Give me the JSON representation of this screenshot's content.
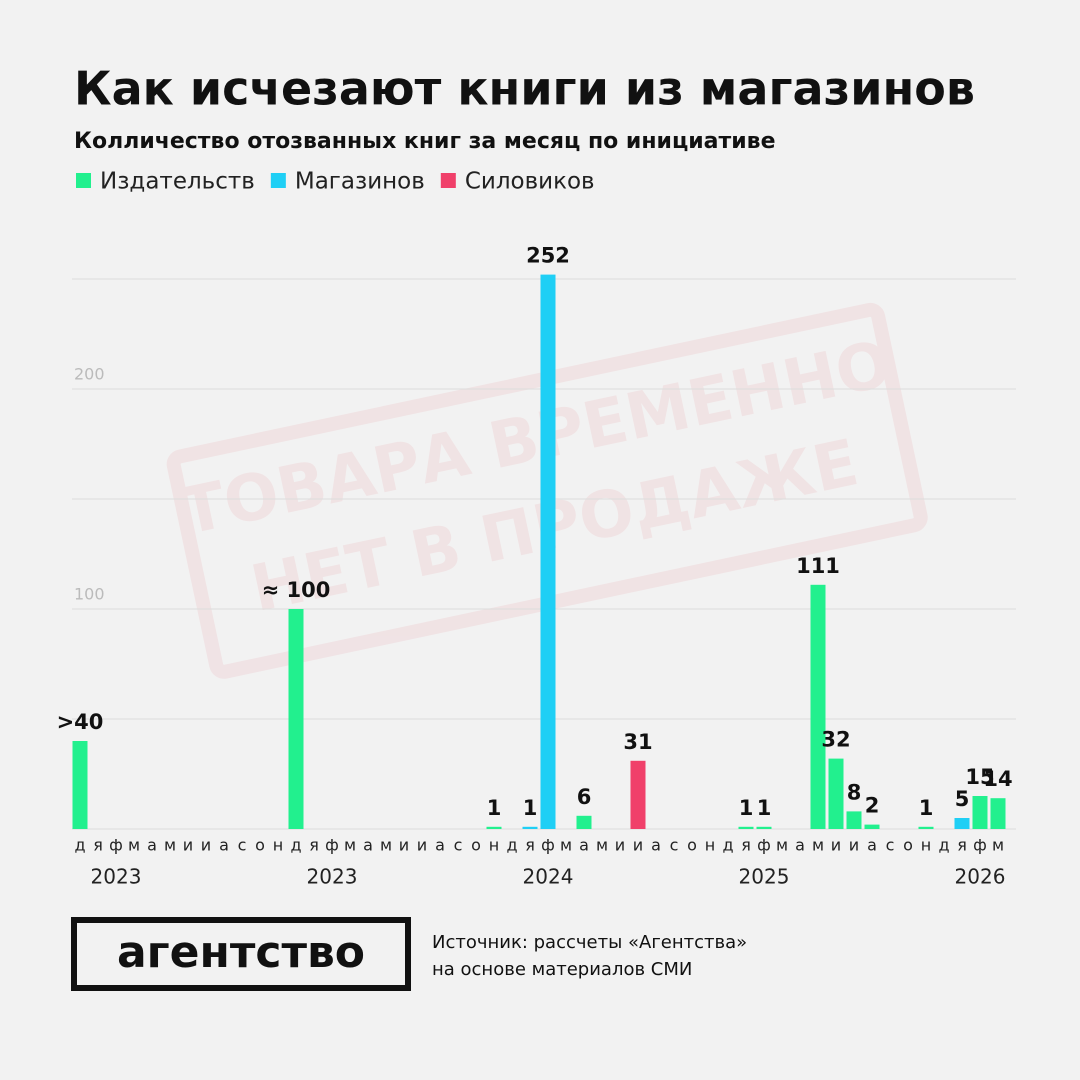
{
  "chart_data": {
    "type": "bar",
    "title": "Как исчезают книги из магазинов",
    "subtitle": "Колличество отозванных книг за месяц по инициативе",
    "categories": [
      "д",
      "я",
      "ф",
      "м",
      "а",
      "м",
      "и",
      "и",
      "а",
      "с",
      "о",
      "н",
      "д",
      "я",
      "ф",
      "м",
      "а",
      "м",
      "и",
      "и",
      "а",
      "с",
      "о",
      "н",
      "д",
      "я",
      "ф",
      "м",
      "а",
      "м",
      "и",
      "и",
      "а",
      "с",
      "о",
      "н",
      "д",
      "я",
      "ф",
      "м",
      "а",
      "м",
      "и",
      "и",
      "а",
      "с",
      "о",
      "н",
      "д",
      "я",
      "ф",
      "м"
    ],
    "years": [
      "2023",
      "2023",
      "2024",
      "2025",
      "2026"
    ],
    "series": [
      {
        "name": "Издательств",
        "color": "#22f08e",
        "values": [
          40,
          null,
          null,
          null,
          null,
          null,
          null,
          null,
          null,
          null,
          null,
          null,
          100,
          null,
          null,
          null,
          null,
          null,
          null,
          null,
          null,
          null,
          null,
          1,
          null,
          null,
          null,
          null,
          6,
          null,
          null,
          null,
          null,
          null,
          null,
          null,
          null,
          1,
          1,
          null,
          null,
          111,
          32,
          8,
          2,
          null,
          null,
          1,
          null,
          null,
          15,
          14
        ],
        "value_labels": [
          ">40",
          null,
          null,
          null,
          null,
          null,
          null,
          null,
          null,
          null,
          null,
          null,
          "≈ 100",
          null,
          null,
          null,
          null,
          null,
          null,
          null,
          null,
          null,
          null,
          null,
          null,
          null,
          null,
          null,
          null,
          null,
          null,
          null,
          null,
          null,
          null,
          null,
          null,
          null,
          null,
          null,
          null,
          null,
          null,
          null,
          null,
          null,
          null,
          null,
          null,
          null,
          null,
          null
        ]
      },
      {
        "name": "Магазинов",
        "color": "#1fcff5",
        "values": [
          null,
          null,
          null,
          null,
          null,
          null,
          null,
          null,
          null,
          null,
          null,
          null,
          null,
          null,
          null,
          null,
          null,
          null,
          null,
          null,
          null,
          null,
          null,
          null,
          null,
          1,
          252,
          null,
          null,
          null,
          null,
          null,
          null,
          null,
          null,
          null,
          null,
          null,
          null,
          null,
          null,
          null,
          null,
          null,
          null,
          null,
          null,
          null,
          null,
          5,
          null,
          null
        ]
      },
      {
        "name": "Силовиков",
        "color": "#f0406a",
        "values": [
          null,
          null,
          null,
          null,
          null,
          null,
          null,
          null,
          null,
          null,
          null,
          null,
          null,
          null,
          null,
          null,
          null,
          null,
          null,
          null,
          null,
          null,
          null,
          null,
          null,
          null,
          null,
          null,
          null,
          null,
          null,
          31,
          null,
          null,
          null,
          null,
          null,
          null,
          null,
          null,
          null,
          null,
          null,
          null,
          null,
          null,
          null,
          null,
          null,
          null,
          null,
          null
        ]
      }
    ],
    "ylim": [
      0,
      250
    ],
    "yticks": [
      100,
      200
    ],
    "grid_lines": [
      50,
      100,
      150,
      200,
      250
    ],
    "grid": true,
    "stamp": [
      "ТОВАРА ВРЕМЕННО",
      "НЕТ В ПРОДАЖЕ"
    ],
    "logo": "агентство",
    "source": [
      "Источник: рассчеты «Агентства»",
      "на основе материалов СМИ"
    ]
  }
}
